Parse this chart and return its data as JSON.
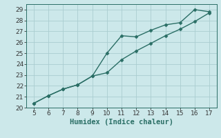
{
  "line1_x": [
    5,
    6,
    7,
    8,
    9,
    10,
    11,
    12,
    13,
    14,
    15,
    16,
    17
  ],
  "line1_y": [
    20.4,
    21.1,
    21.7,
    22.1,
    22.9,
    23.2,
    24.4,
    25.2,
    25.9,
    26.6,
    27.2,
    27.9,
    28.7
  ],
  "line2_x": [
    5,
    6,
    7,
    8,
    9,
    10,
    11,
    12,
    13,
    14,
    15,
    16,
    17
  ],
  "line2_y": [
    20.4,
    21.1,
    21.7,
    22.1,
    22.9,
    25.0,
    26.6,
    26.5,
    27.1,
    27.6,
    27.8,
    29.0,
    28.8
  ],
  "color": "#2a6e65",
  "bg_color": "#cce8ea",
  "grid_color": "#aacdd0",
  "xlabel": "Humidex (Indice chaleur)",
  "xlim": [
    4.5,
    17.5
  ],
  "ylim": [
    20,
    29.5
  ],
  "xticks": [
    5,
    6,
    7,
    8,
    9,
    10,
    11,
    12,
    13,
    14,
    15,
    16,
    17
  ],
  "yticks": [
    20,
    21,
    22,
    23,
    24,
    25,
    26,
    27,
    28,
    29
  ],
  "font_size": 6.5,
  "xlabel_fontsize": 7.5,
  "marker": "D",
  "marker_size": 2.5,
  "linewidth": 1.0
}
